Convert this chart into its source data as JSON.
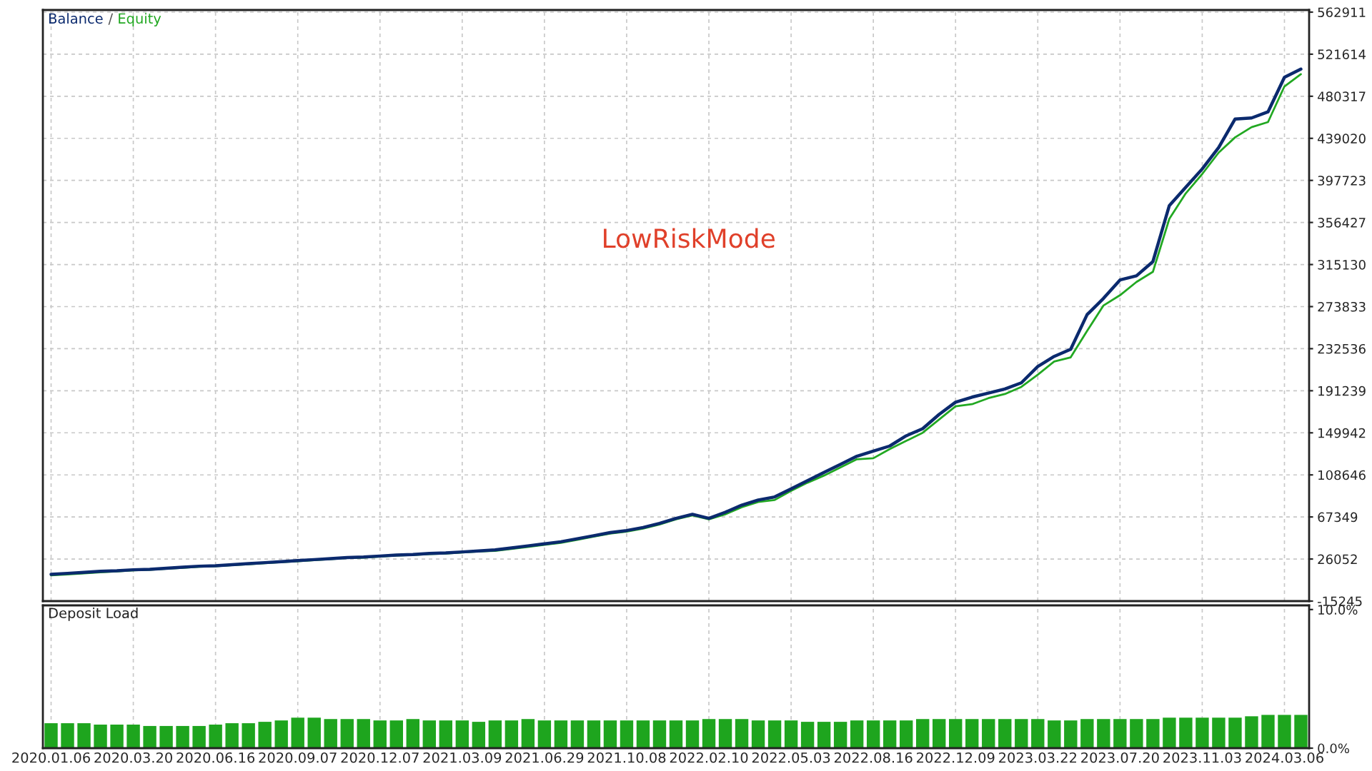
{
  "chart_data": [
    {
      "type": "line",
      "annotations": [
        "LowRiskMode",
        "/"
      ],
      "categories": [
        "2020.01.06",
        null,
        null,
        null,
        null,
        "2020.03.20",
        null,
        null,
        null,
        null,
        "2020.06.16",
        null,
        null,
        null,
        null,
        "2020.09.07",
        null,
        null,
        null,
        null,
        "2020.12.07",
        null,
        null,
        null,
        null,
        "2021.03.09",
        null,
        null,
        null,
        null,
        "2021.06.29",
        null,
        null,
        null,
        null,
        "2021.10.08",
        null,
        null,
        null,
        null,
        "2022.02.10",
        null,
        null,
        null,
        null,
        "2022.05.03",
        null,
        null,
        null,
        null,
        "2022.08.16",
        null,
        null,
        null,
        null,
        "2022.12.09",
        null,
        null,
        null,
        null,
        "2023.03.22",
        null,
        null,
        null,
        null,
        "2023.07.20",
        null,
        null,
        null,
        null,
        "2023.11.03",
        null,
        null,
        null,
        null,
        "2024.03.06",
        null
      ],
      "series": [
        {
          "name": "Balance",
          "color": "#0b2a6e",
          "values": [
            11000,
            12000,
            13000,
            14000,
            14500,
            15500,
            16000,
            17000,
            18000,
            19000,
            19500,
            20500,
            21500,
            22500,
            23500,
            24500,
            25500,
            26500,
            27500,
            28000,
            29000,
            30000,
            30500,
            31500,
            32000,
            33000,
            34000,
            35000,
            37000,
            39000,
            41000,
            43000,
            46000,
            49000,
            52000,
            54000,
            57000,
            61000,
            66000,
            70000,
            66000,
            72000,
            79000,
            84000,
            87000,
            95000,
            103000,
            111000,
            119000,
            127000,
            132000,
            137000,
            147000,
            154000,
            168000,
            180000,
            185000,
            189000,
            193000,
            199000,
            215000,
            225000,
            232000,
            266000,
            282000,
            300000,
            304000,
            318000,
            373000,
            391000,
            409000,
            430000,
            458000,
            459000,
            465000,
            499000,
            507000
          ]
        },
        {
          "name": "Equity",
          "color": "#22a822",
          "values": [
            10000,
            11000,
            12000,
            13000,
            14000,
            15000,
            15500,
            16500,
            17500,
            18500,
            19000,
            20000,
            21000,
            22000,
            23000,
            24000,
            25000,
            26000,
            27000,
            27500,
            28500,
            29500,
            30000,
            31000,
            31500,
            32500,
            33500,
            34000,
            36000,
            38000,
            40000,
            42000,
            45000,
            48000,
            51000,
            53000,
            56000,
            60000,
            65000,
            69000,
            65000,
            70000,
            77000,
            82000,
            84000,
            93000,
            101000,
            108000,
            116000,
            124000,
            125000,
            134000,
            142000,
            150000,
            163000,
            176000,
            178000,
            184000,
            188000,
            195000,
            207000,
            220000,
            224000,
            250000,
            275000,
            285000,
            298000,
            308000,
            360000,
            385000,
            404000,
            425000,
            440000,
            450000,
            455000,
            490000,
            502000
          ]
        }
      ],
      "ylim": [
        -15245,
        565000
      ],
      "yticks": [
        -15245,
        26052,
        67349,
        108646,
        149942,
        191239,
        232536,
        273833,
        315130,
        356427,
        397723,
        439020,
        480317,
        521614,
        562911
      ],
      "grid": true,
      "tick_labels": "y"
    },
    {
      "type": "bar",
      "title": "Deposit Load",
      "color": "#1ea51e",
      "categories": [
        "2020.01.06",
        null,
        null,
        null,
        null,
        "2020.03.20",
        null,
        null,
        null,
        null,
        "2020.06.16",
        null,
        null,
        null,
        null,
        "2020.09.07",
        null,
        null,
        null,
        null,
        "2020.12.07",
        null,
        null,
        null,
        null,
        "2021.03.09",
        null,
        null,
        null,
        null,
        "2021.06.29",
        null,
        null,
        null,
        null,
        "2021.10.08",
        null,
        null,
        null,
        null,
        "2022.02.10",
        null,
        null,
        null,
        null,
        "2022.05.03",
        null,
        null,
        null,
        null,
        "2022.08.16",
        null,
        null,
        null,
        null,
        "2022.12.09",
        null,
        null,
        null,
        null,
        "2023.03.22",
        null,
        null,
        null,
        null,
        "2023.07.20",
        null,
        null,
        null,
        null,
        "2023.11.03",
        null,
        null,
        null,
        null,
        "2024.03.06",
        null
      ],
      "values": [
        1.8,
        1.8,
        1.8,
        1.7,
        1.7,
        1.7,
        1.6,
        1.6,
        1.6,
        1.6,
        1.7,
        1.8,
        1.8,
        1.9,
        2.0,
        2.2,
        2.2,
        2.1,
        2.1,
        2.1,
        2.0,
        2.0,
        2.1,
        2.0,
        2.0,
        2.0,
        1.9,
        2.0,
        2.0,
        2.1,
        2.0,
        2.0,
        2.0,
        2.0,
        2.0,
        2.0,
        2.0,
        2.0,
        2.0,
        2.0,
        2.1,
        2.1,
        2.1,
        2.0,
        2.0,
        2.0,
        1.9,
        1.9,
        1.9,
        2.0,
        2.0,
        2.0,
        2.0,
        2.1,
        2.1,
        2.1,
        2.1,
        2.1,
        2.1,
        2.1,
        2.1,
        2.0,
        2.0,
        2.1,
        2.1,
        2.1,
        2.1,
        2.1,
        2.2,
        2.2,
        2.2,
        2.2,
        2.2,
        2.3,
        2.4,
        2.4,
        2.4
      ],
      "ylim": [
        0,
        10.3
      ],
      "yticks": [
        {
          "value": 0,
          "label": "0.0%"
        },
        {
          "value": 10,
          "label": "10.0%"
        }
      ],
      "grid": "x"
    }
  ]
}
